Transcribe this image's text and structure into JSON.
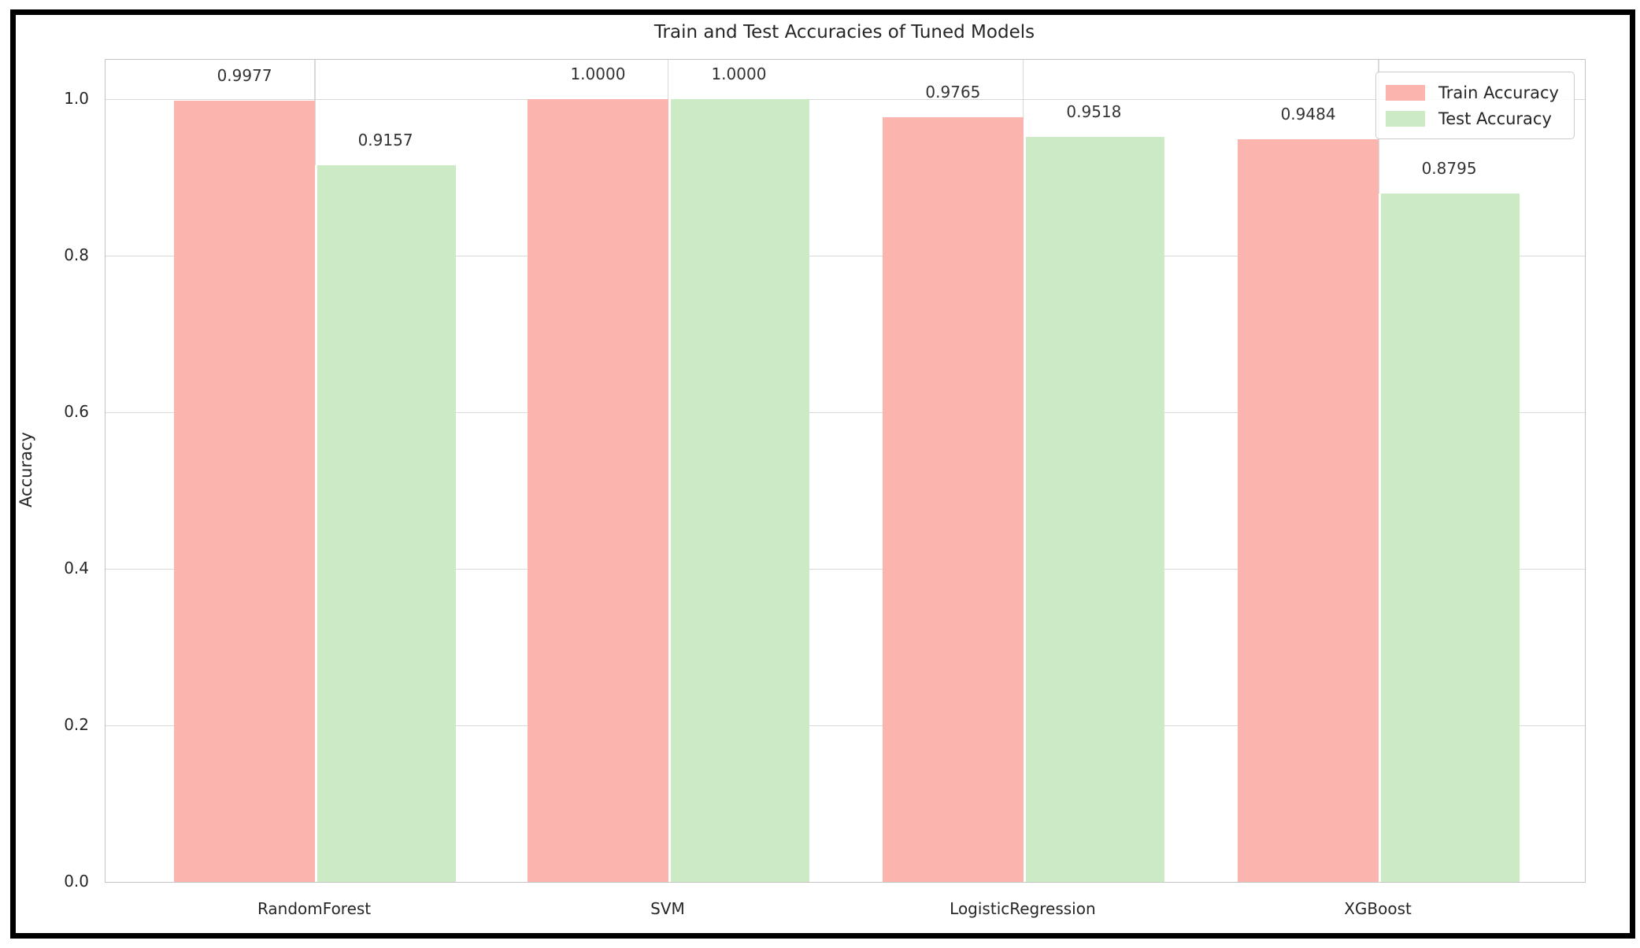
{
  "chart_data": {
    "type": "bar",
    "title": "Train and Test Accuracies of Tuned Models",
    "xlabel": "",
    "ylabel": "Accuracy",
    "categories": [
      "RandomForest",
      "SVM",
      "LogisticRegression",
      "XGBoost"
    ],
    "series": [
      {
        "name": "Train Accuracy",
        "color": "#fbb4ae",
        "values": [
          0.9977,
          1.0,
          0.9765,
          0.9484
        ],
        "value_labels": [
          "0.9977",
          "1.0000",
          "0.9765",
          "0.9484"
        ]
      },
      {
        "name": "Test Accuracy",
        "color": "#ccebc5",
        "values": [
          0.9157,
          1.0,
          0.9518,
          0.8795
        ],
        "value_labels": [
          "0.9157",
          "1.0000",
          "0.9518",
          "0.8795"
        ]
      }
    ],
    "y_ticks": [
      {
        "label": "0.0",
        "value": 0.0
      },
      {
        "label": "0.2",
        "value": 0.2
      },
      {
        "label": "0.4",
        "value": 0.4
      },
      {
        "label": "0.6",
        "value": 0.6
      },
      {
        "label": "0.8",
        "value": 0.8
      },
      {
        "label": "1.0",
        "value": 1.0
      }
    ],
    "ylim": [
      0,
      1.05
    ],
    "grid": true,
    "legend_position": "upper right",
    "styles": {
      "grid_color": "#d9d9d9",
      "spine_color": "#c4c4c4",
      "frame_border_color": "#000000",
      "text_color": "#262626",
      "background_color": "#ffffff"
    }
  }
}
